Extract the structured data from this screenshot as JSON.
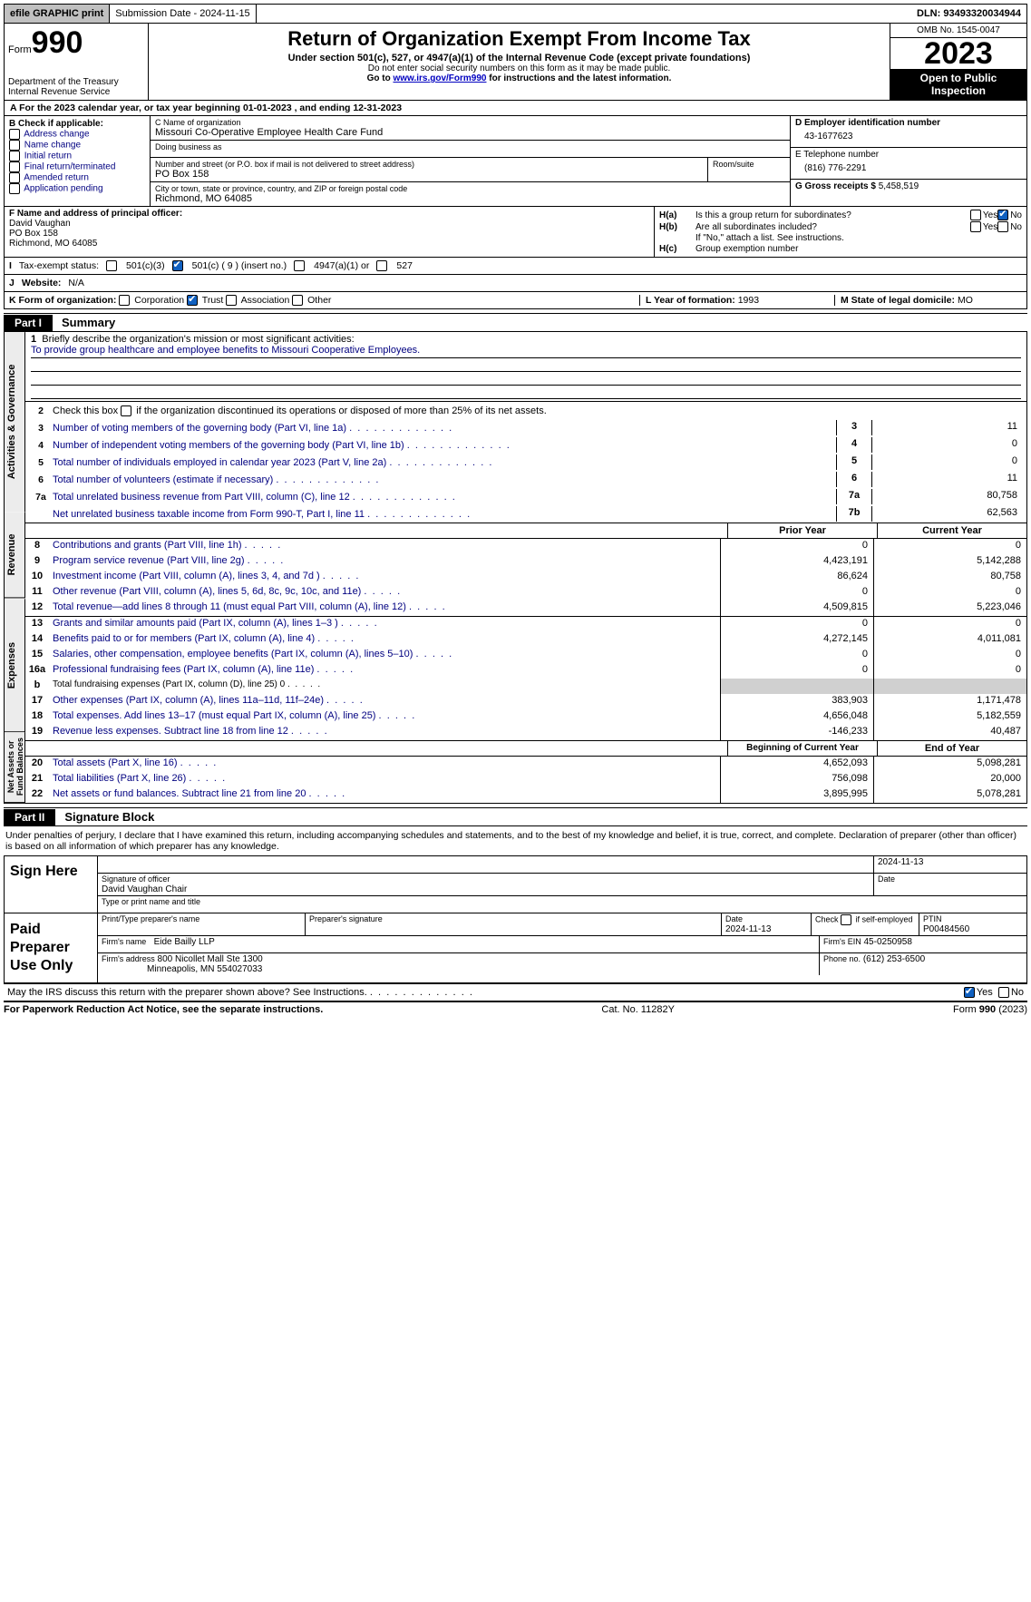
{
  "topbar": {
    "efile": "efile GRAPHIC print",
    "submission": "Submission Date - 2024-11-15",
    "dln": "DLN: 93493320034944"
  },
  "header": {
    "form_word": "Form",
    "form_num": "990",
    "dept": "Department of the Treasury",
    "irs": "Internal Revenue Service",
    "title": "Return of Organization Exempt From Income Tax",
    "sub": "Under section 501(c), 527, or 4947(a)(1) of the Internal Revenue Code (except private foundations)",
    "note1": "Do not enter social security numbers on this form as it may be made public.",
    "note2_pre": "Go to ",
    "note2_link": "www.irs.gov/Form990",
    "note2_post": " for instructions and the latest information.",
    "omb": "OMB No. 1545-0047",
    "year": "2023",
    "open1": "Open to Public",
    "open2": "Inspection"
  },
  "rowA": "A For the 2023 calendar year, or tax year beginning 01-01-2023   , and ending 12-31-2023",
  "boxB": {
    "title": "B Check if applicable:",
    "items": [
      "Address change",
      "Name change",
      "Initial return",
      "Final return/terminated",
      "Amended return",
      "Application pending"
    ]
  },
  "boxC": {
    "name_lbl": "C Name of organization",
    "name": "Missouri Co-Operative Employee Health Care Fund",
    "dba_lbl": "Doing business as",
    "dba": "",
    "addr_lbl": "Number and street (or P.O. box if mail is not delivered to street address)",
    "room_lbl": "Room/suite",
    "addr": "PO Box 158",
    "city_lbl": "City or town, state or province, country, and ZIP or foreign postal code",
    "city": "Richmond, MO  64085"
  },
  "boxD": {
    "lbl": "D Employer identification number",
    "val": "43-1677623"
  },
  "boxE": {
    "lbl": "E Telephone number",
    "val": "(816) 776-2291"
  },
  "boxG": {
    "lbl": "G Gross receipts $",
    "val": "5,458,519"
  },
  "boxF": {
    "lbl": "F  Name and address of principal officer:",
    "l1": "David Vaughan",
    "l2": "PO Box 158",
    "l3": "Richmond, MO  64085"
  },
  "boxH": {
    "a": "Is this a group return for subordinates?",
    "b": "Are all subordinates included?",
    "b_note": "If \"No,\" attach a list. See instructions.",
    "c": "Group exemption number"
  },
  "status": {
    "lbl": "Tax-exempt status:",
    "o1": "501(c)(3)",
    "o2": "501(c) ( 9 ) (insert no.)",
    "o3": "4947(a)(1) or",
    "o4": "527"
  },
  "website": {
    "lbl": "Website:",
    "val": "N/A"
  },
  "boxK": {
    "lbl": "K Form of organization:",
    "opts": [
      "Corporation",
      "Trust",
      "Association",
      "Other"
    ]
  },
  "boxL": {
    "lbl": "L Year of formation:",
    "val": "1993"
  },
  "boxM": {
    "lbl": "M State of legal domicile:",
    "val": "MO"
  },
  "part1": {
    "tag": "Part I",
    "title": "Summary"
  },
  "mission": {
    "lbl": "Briefly describe the organization's mission or most significant activities:",
    "text": "To provide group healthcare and employee benefits to Missouri Cooperative Employees."
  },
  "line2": "Check this box      if the organization discontinued its operations or disposed of more than 25% of its net assets.",
  "gov_lines": [
    {
      "n": "3",
      "t": "Number of voting members of the governing body (Part VI, line 1a)",
      "bn": "3",
      "v": "11"
    },
    {
      "n": "4",
      "t": "Number of independent voting members of the governing body (Part VI, line 1b)",
      "bn": "4",
      "v": "0"
    },
    {
      "n": "5",
      "t": "Total number of individuals employed in calendar year 2023 (Part V, line 2a)",
      "bn": "5",
      "v": "0"
    },
    {
      "n": "6",
      "t": "Total number of volunteers (estimate if necessary)",
      "bn": "6",
      "v": "11"
    },
    {
      "n": "7a",
      "t": "Total unrelated business revenue from Part VIII, column (C), line 12",
      "bn": "7a",
      "v": "80,758"
    },
    {
      "n": "",
      "t": "Net unrelated business taxable income from Form 990-T, Part I, line 11",
      "bn": "7b",
      "v": "62,563"
    }
  ],
  "rev_hdr": {
    "c1": "Prior Year",
    "c2": "Current Year"
  },
  "rev_lines": [
    {
      "n": "8",
      "t": "Contributions and grants (Part VIII, line 1h)",
      "c1": "0",
      "c2": "0"
    },
    {
      "n": "9",
      "t": "Program service revenue (Part VIII, line 2g)",
      "c1": "4,423,191",
      "c2": "5,142,288"
    },
    {
      "n": "10",
      "t": "Investment income (Part VIII, column (A), lines 3, 4, and 7d )",
      "c1": "86,624",
      "c2": "80,758"
    },
    {
      "n": "11",
      "t": "Other revenue (Part VIII, column (A), lines 5, 6d, 8c, 9c, 10c, and 11e)",
      "c1": "0",
      "c2": "0"
    },
    {
      "n": "12",
      "t": "Total revenue—add lines 8 through 11 (must equal Part VIII, column (A), line 12)",
      "c1": "4,509,815",
      "c2": "5,223,046"
    }
  ],
  "exp_lines": [
    {
      "n": "13",
      "t": "Grants and similar amounts paid (Part IX, column (A), lines 1–3 )",
      "c1": "0",
      "c2": "0"
    },
    {
      "n": "14",
      "t": "Benefits paid to or for members (Part IX, column (A), line 4)",
      "c1": "4,272,145",
      "c2": "4,011,081"
    },
    {
      "n": "15",
      "t": "Salaries, other compensation, employee benefits (Part IX, column (A), lines 5–10)",
      "c1": "0",
      "c2": "0"
    },
    {
      "n": "16a",
      "t": "Professional fundraising fees (Part IX, column (A), line 11e)",
      "c1": "0",
      "c2": "0"
    },
    {
      "n": "b",
      "t": "Total fundraising expenses (Part IX, column (D), line 25) 0",
      "c1": "",
      "c2": "",
      "shade": true,
      "small": true
    },
    {
      "n": "17",
      "t": "Other expenses (Part IX, column (A), lines 11a–11d, 11f–24e)",
      "c1": "383,903",
      "c2": "1,171,478"
    },
    {
      "n": "18",
      "t": "Total expenses. Add lines 13–17 (must equal Part IX, column (A), line 25)",
      "c1": "4,656,048",
      "c2": "5,182,559"
    },
    {
      "n": "19",
      "t": "Revenue less expenses. Subtract line 18 from line 12",
      "c1": "-146,233",
      "c2": "40,487"
    }
  ],
  "na_hdr": {
    "c1": "Beginning of Current Year",
    "c2": "End of Year"
  },
  "na_lines": [
    {
      "n": "20",
      "t": "Total assets (Part X, line 16)",
      "c1": "4,652,093",
      "c2": "5,098,281"
    },
    {
      "n": "21",
      "t": "Total liabilities (Part X, line 26)",
      "c1": "756,098",
      "c2": "20,000"
    },
    {
      "n": "22",
      "t": "Net assets or fund balances. Subtract line 21 from line 20",
      "c1": "3,895,995",
      "c2": "5,078,281"
    }
  ],
  "vlabels": {
    "gov": "Activities & Governance",
    "rev": "Revenue",
    "exp": "Expenses",
    "na": "Net Assets or Fund Balances"
  },
  "part2": {
    "tag": "Part II",
    "title": "Signature Block"
  },
  "sig_intro": "Under penalties of perjury, I declare that I have examined this return, including accompanying schedules and statements, and to the best of my knowledge and belief, it is true, correct, and complete. Declaration of preparer (other than officer) is based on all information of which preparer has any knowledge.",
  "sign": {
    "left": "Sign Here",
    "date": "2024-11-13",
    "sig_lbl": "Signature of officer",
    "name": "David Vaughan  Chair",
    "name_lbl": "Type or print name and title",
    "date_lbl": "Date"
  },
  "paid": {
    "left": "Paid Preparer Use Only",
    "h1": "Print/Type preparer's name",
    "h2": "Preparer's signature",
    "h3": "Date",
    "h3v": "2024-11-13",
    "h4": "Check      if self-employed",
    "h5": "PTIN",
    "h5v": "P00484560",
    "firm_lbl": "Firm's name",
    "firm": "Eide Bailly LLP",
    "ein_lbl": "Firm's EIN",
    "ein": "45-0250958",
    "addr_lbl": "Firm's address",
    "addr1": "800 Nicollet Mall Ste 1300",
    "addr2": "Minneapolis, MN  554027033",
    "phone_lbl": "Phone no.",
    "phone": "(612) 253-6500"
  },
  "discuss": "May the IRS discuss this return with the preparer shown above? See Instructions.",
  "footer": {
    "l": "For Paperwork Reduction Act Notice, see the separate instructions.",
    "m": "Cat. No. 11282Y",
    "r": "Form 990 (2023)"
  },
  "yn": {
    "yes": "Yes",
    "no": "No"
  }
}
